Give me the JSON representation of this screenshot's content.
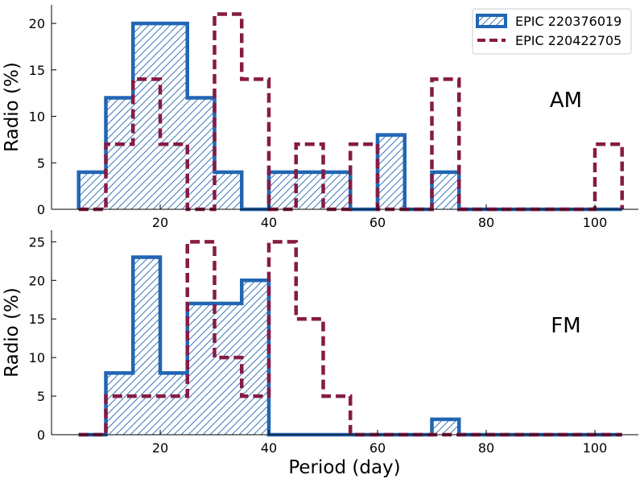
{
  "chart_data": [
    {
      "type": "histogram-step",
      "panel_label": "AM",
      "ylabel": "Radio (%)",
      "xlabel": "",
      "xlim": [
        0,
        108
      ],
      "ylim": [
        0,
        22
      ],
      "xticks": [
        20,
        40,
        60,
        80,
        100
      ],
      "yticks": [
        0,
        5,
        10,
        15,
        20
      ],
      "bin_edges": [
        5,
        10,
        15,
        20,
        25,
        30,
        35,
        40,
        45,
        50,
        55,
        60,
        65,
        70,
        75,
        80,
        85,
        90,
        95,
        100,
        105
      ],
      "series": [
        {
          "name": "EPIC 220376019",
          "style": "solid-hatched",
          "color": "#2166b3",
          "values": [
            4,
            12,
            20,
            20,
            12,
            4,
            0,
            4,
            4,
            4,
            0,
            8,
            0,
            4,
            0,
            0,
            0,
            0,
            0,
            0
          ]
        },
        {
          "name": "EPIC 220422705",
          "style": "dashed",
          "color": "#861b45",
          "values": [
            0,
            7,
            14,
            7,
            0,
            21,
            14,
            0,
            7,
            0,
            7,
            0,
            0,
            14,
            0,
            0,
            0,
            0,
            0,
            7
          ]
        }
      ]
    },
    {
      "type": "histogram-step",
      "panel_label": "FM",
      "ylabel": "Radio (%)",
      "xlabel": "Period (day)",
      "xlim": [
        0,
        108
      ],
      "ylim": [
        0,
        26.5
      ],
      "xticks": [
        20,
        40,
        60,
        80,
        100
      ],
      "yticks": [
        0,
        5,
        10,
        15,
        20,
        25
      ],
      "bin_edges": [
        5,
        10,
        15,
        20,
        25,
        30,
        35,
        40,
        45,
        50,
        55,
        60,
        65,
        70,
        75,
        80,
        85,
        90,
        95,
        100,
        105
      ],
      "series": [
        {
          "name": "EPIC 220376019",
          "style": "solid-hatched",
          "color": "#2166b3",
          "values": [
            0,
            8,
            23,
            8,
            17,
            17,
            20,
            0,
            0,
            0,
            0,
            0,
            0,
            2,
            0,
            0,
            0,
            0,
            0,
            0
          ]
        },
        {
          "name": "EPIC 220422705",
          "style": "dashed",
          "color": "#861b45",
          "values": [
            0,
            5,
            5,
            5,
            25,
            10,
            5,
            25,
            15,
            5,
            0,
            0,
            0,
            0,
            0,
            0,
            0,
            0,
            0,
            0
          ]
        }
      ]
    }
  ],
  "legend": {
    "entries": [
      "EPIC 220376019",
      "EPIC 220422705"
    ],
    "placement": "top-right"
  }
}
